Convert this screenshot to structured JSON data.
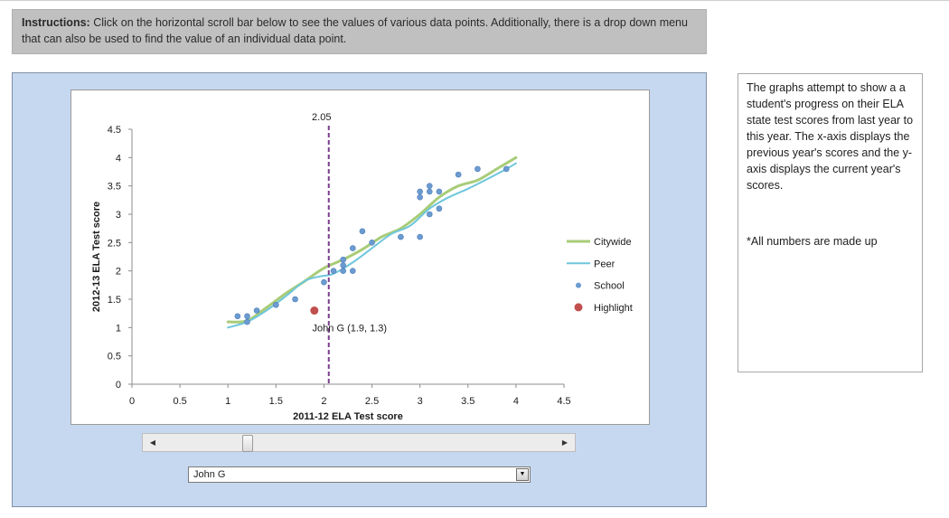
{
  "instructions": {
    "label": "Instructions:",
    "text": "Click on the horizontal scroll bar below to see the values of various data points.  Additionally, there is a drop down menu that can also be used to find the value of an individual data point."
  },
  "side_note": {
    "text": "The graphs attempt to show a a student's progress on their ELA state test scores from last year to this year.  The x-axis displays the previous year's scores and the y-axis displays the current year's scores.",
    "footnote": "*All numbers are made up"
  },
  "dropdown": {
    "selected": "John G"
  },
  "chart_data": {
    "type": "scatter",
    "xlabel": "2011-12 ELA Test score",
    "ylabel": "2012-13 ELA Test score",
    "xlim": [
      0,
      4.5
    ],
    "ylim": [
      0,
      4.5
    ],
    "x_ticks": [
      "0",
      "0.5",
      "1",
      "1.5",
      "2",
      "2.5",
      "3",
      "3.5",
      "4",
      "4.5"
    ],
    "y_ticks": [
      "0",
      "0.5",
      "1",
      "1.5",
      "2",
      "2.5",
      "3",
      "3.5",
      "4",
      "4.5"
    ],
    "grid": false,
    "legend_position": "right",
    "vertical_marker": {
      "x": 2.05,
      "label": "2.05",
      "color": "#7a3e8e"
    },
    "series": [
      {
        "name": "Citywide",
        "kind": "line",
        "color": "#a8cc78",
        "points": [
          [
            1,
            1.1
          ],
          [
            1.2,
            1.12
          ],
          [
            1.4,
            1.35
          ],
          [
            1.6,
            1.6
          ],
          [
            1.8,
            1.82
          ],
          [
            2.0,
            2.05
          ],
          [
            2.2,
            2.2
          ],
          [
            2.4,
            2.38
          ],
          [
            2.6,
            2.6
          ],
          [
            2.8,
            2.75
          ],
          [
            3.0,
            3.0
          ],
          [
            3.2,
            3.3
          ],
          [
            3.4,
            3.5
          ],
          [
            3.6,
            3.6
          ],
          [
            3.8,
            3.8
          ],
          [
            4.0,
            4.0
          ]
        ]
      },
      {
        "name": "Peer",
        "kind": "line",
        "color": "#6ec6dc",
        "points": [
          [
            1,
            1.0
          ],
          [
            1.2,
            1.1
          ],
          [
            1.4,
            1.3
          ],
          [
            1.6,
            1.55
          ],
          [
            1.8,
            1.82
          ],
          [
            1.95,
            1.9
          ],
          [
            2.1,
            1.95
          ],
          [
            2.3,
            2.15
          ],
          [
            2.5,
            2.4
          ],
          [
            2.7,
            2.65
          ],
          [
            2.9,
            2.8
          ],
          [
            3.1,
            3.1
          ],
          [
            3.3,
            3.3
          ],
          [
            3.5,
            3.45
          ],
          [
            3.7,
            3.62
          ],
          [
            3.9,
            3.8
          ],
          [
            4.0,
            3.9
          ]
        ]
      },
      {
        "name": "School",
        "kind": "scatter",
        "color": "#6b9bd1",
        "points": [
          [
            1.1,
            1.2
          ],
          [
            1.2,
            1.2
          ],
          [
            1.2,
            1.1
          ],
          [
            1.3,
            1.3
          ],
          [
            1.5,
            1.4
          ],
          [
            1.7,
            1.5
          ],
          [
            2.0,
            1.8
          ],
          [
            2.1,
            2.0
          ],
          [
            2.2,
            2.0
          ],
          [
            2.2,
            2.1
          ],
          [
            2.2,
            2.2
          ],
          [
            2.3,
            2.0
          ],
          [
            2.3,
            2.4
          ],
          [
            2.4,
            2.7
          ],
          [
            2.5,
            2.5
          ],
          [
            2.8,
            2.6
          ],
          [
            3.0,
            2.6
          ],
          [
            3.0,
            3.3
          ],
          [
            3.0,
            3.4
          ],
          [
            3.1,
            3.0
          ],
          [
            3.1,
            3.4
          ],
          [
            3.1,
            3.5
          ],
          [
            3.2,
            3.1
          ],
          [
            3.2,
            3.4
          ],
          [
            3.4,
            3.7
          ],
          [
            3.6,
            3.8
          ],
          [
            3.9,
            3.8
          ]
        ]
      },
      {
        "name": "Highlight",
        "kind": "scatter",
        "color": "#c0504d",
        "points": [
          [
            1.9,
            1.3
          ]
        ]
      }
    ],
    "annotations": [
      {
        "x": 1.9,
        "y": 1.3,
        "text": "John G (1.9, 1.3)"
      }
    ]
  }
}
